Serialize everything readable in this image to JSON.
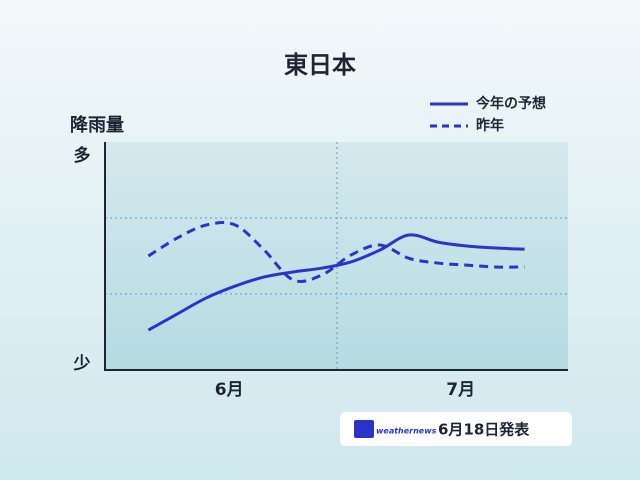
{
  "chart_data": {
    "type": "line",
    "title": "東日本",
    "y_label": "降雨量",
    "categories": [
      null,
      null,
      null,
      null,
      "6月",
      null,
      null,
      null,
      null,
      null,
      null,
      null,
      "7月",
      null,
      null,
      null
    ],
    "series": [
      {
        "name": "今年の予想",
        "color": "#2b34c9",
        "dash": false,
        "values": [
          null,
          17.5,
          24.6,
          31.6,
          36.8,
          40.8,
          43,
          44.7,
          47.4,
          52.6,
          59.2,
          56.1,
          54.4,
          53.5,
          53,
          null
        ]
      },
      {
        "name": "昨年",
        "color": "#2b34c9",
        "dash": true,
        "values": [
          null,
          50,
          57.9,
          63.6,
          63.6,
          52.6,
          39.5,
          41.7,
          50.4,
          54.8,
          49,
          46.9,
          46,
          45.2,
          45.2,
          null
        ]
      }
    ],
    "ylim": [
      0,
      100
    ],
    "yticks": [
      {
        "value": 0,
        "label": "少"
      },
      {
        "value": 100,
        "label": "多"
      }
    ],
    "legend": "top-right",
    "source": "weathernews",
    "note": "6月18日発表"
  }
}
